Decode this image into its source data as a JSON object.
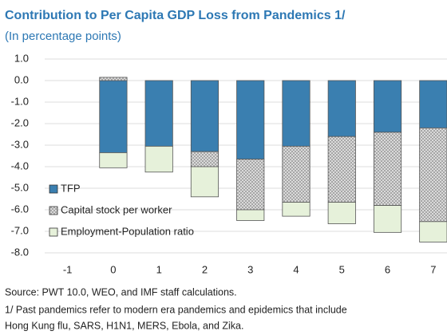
{
  "chart_data": {
    "type": "bar",
    "title": "Contribution to Per Capita GDP Loss from Pandemics 1/",
    "subtitle": "(In percentage points)",
    "x": [
      0,
      1,
      2,
      3,
      4,
      5,
      6,
      7
    ],
    "series": [
      {
        "name": "TFP",
        "color": "#3a7fb0",
        "hatch": false,
        "values": [
          -3.35,
          -3.05,
          -3.3,
          -3.65,
          -3.05,
          -2.6,
          -2.4,
          -2.2
        ]
      },
      {
        "name": "Capital stock per worker",
        "color": "#9a9a9a",
        "hatch": true,
        "values": [
          0.15,
          0,
          -0.7,
          -2.35,
          -2.6,
          -3.05,
          -3.4,
          -4.35
        ]
      },
      {
        "name": "Employment-Population ratio",
        "color": "#e6f1da",
        "hatch": false,
        "values": [
          -0.7,
          -1.2,
          -1.4,
          -0.5,
          -0.65,
          -1.0,
          -1.25,
          -0.95
        ]
      }
    ],
    "xlim": [
      -1.5,
      7.3
    ],
    "xticks": [
      -1,
      0,
      1,
      2,
      3,
      4,
      5,
      6,
      7
    ],
    "ylim": [
      -8,
      1
    ],
    "yticks": [
      {
        "value": 1,
        "label": "1.0"
      },
      {
        "value": 0,
        "label": "0.0"
      },
      {
        "value": -1,
        "label": "-1.0"
      },
      {
        "value": -2,
        "label": "-2.0"
      },
      {
        "value": -3,
        "label": "-3.0"
      },
      {
        "value": -4,
        "label": "-4.0"
      },
      {
        "value": -5,
        "label": "-5.0"
      },
      {
        "value": -6,
        "label": "-6.0"
      },
      {
        "value": -7,
        "label": "-7.0"
      },
      {
        "value": -8,
        "label": "-8.0"
      }
    ],
    "grid": true,
    "legend": "lower left",
    "notes": [
      "Source: PWT 10.0, WEO, and IMF staff calculations.",
      "1/  Past pandemics refer to modern era pandemics and epidemics that include",
      "Hong Kung flu, SARS, H1N1, MERS, Ebola, and Zika."
    ]
  }
}
